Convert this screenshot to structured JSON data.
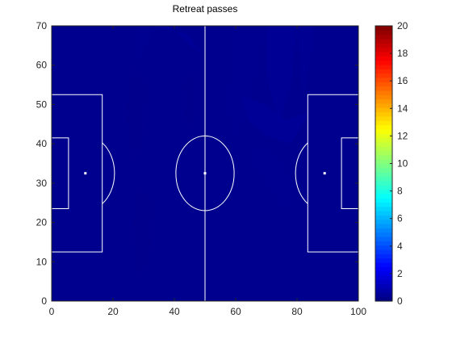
{
  "chart_data": {
    "type": "heatmap",
    "title": "Retreat passes",
    "xlabel": "",
    "ylabel": "",
    "xlim": [
      0,
      100
    ],
    "ylim": [
      0,
      70
    ],
    "x_ticks": [
      0,
      20,
      40,
      60,
      80,
      100
    ],
    "y_ticks": [
      0,
      10,
      20,
      30,
      40,
      50,
      60,
      70
    ],
    "colorbar": {
      "colormap": "jet",
      "clim": [
        0,
        20
      ],
      "ticks": [
        0,
        2,
        4,
        6,
        8,
        10,
        12,
        14,
        16,
        18,
        20
      ]
    },
    "background_value": 0,
    "colors": {
      "base": "#00008f",
      "pitch_lines": "#ffffff",
      "axis": "#262626"
    },
    "highlight_regions": [
      {
        "value": 0.6,
        "polygon": [
          [
            32,
            70
          ],
          [
            38,
            70
          ],
          [
            50,
            62
          ],
          [
            44,
            68
          ]
        ]
      },
      {
        "value": 0.4,
        "polygon": [
          [
            28,
            70
          ],
          [
            34,
            70
          ],
          [
            28,
            60
          ]
        ]
      },
      {
        "value": 0.35,
        "polygon": [
          [
            60,
            70
          ],
          [
            70,
            70
          ],
          [
            66,
            55
          ],
          [
            60,
            40
          ],
          [
            57,
            50
          ]
        ]
      },
      {
        "value": 0.5,
        "polygon": [
          [
            70,
            70
          ],
          [
            80,
            70
          ],
          [
            78,
            55
          ],
          [
            74,
            45
          ],
          [
            70,
            58
          ]
        ]
      },
      {
        "value": 0.45,
        "polygon": [
          [
            80,
            70
          ],
          [
            86,
            70
          ],
          [
            84,
            60
          ],
          [
            82,
            52
          ]
        ]
      },
      {
        "value": 0.55,
        "polygon": [
          [
            62,
            52
          ],
          [
            70,
            50
          ],
          [
            76,
            46
          ],
          [
            84,
            48
          ],
          [
            78,
            40
          ],
          [
            70,
            42
          ],
          [
            64,
            46
          ]
        ]
      },
      {
        "value": 0.35,
        "polygon": [
          [
            64,
            40
          ],
          [
            72,
            38
          ],
          [
            80,
            30
          ],
          [
            76,
            22
          ],
          [
            70,
            30
          ],
          [
            66,
            34
          ]
        ]
      },
      {
        "value": 0.3,
        "polygon": [
          [
            60,
            30
          ],
          [
            68,
            25
          ],
          [
            72,
            12
          ],
          [
            66,
            0
          ],
          [
            62,
            10
          ],
          [
            58,
            20
          ]
        ]
      },
      {
        "value": 0.3,
        "polygon": [
          [
            72,
            25
          ],
          [
            80,
            20
          ],
          [
            84,
            10
          ],
          [
            78,
            0
          ],
          [
            74,
            12
          ]
        ]
      },
      {
        "value": 0.2,
        "polygon": [
          [
            26,
            60
          ],
          [
            32,
            55
          ],
          [
            30,
            40
          ],
          [
            26,
            35
          ],
          [
            24,
            48
          ]
        ]
      },
      {
        "value": 0.2,
        "polygon": [
          [
            28,
            30
          ],
          [
            34,
            25
          ],
          [
            32,
            10
          ],
          [
            28,
            5
          ],
          [
            26,
            18
          ]
        ]
      },
      {
        "value": 0.2,
        "polygon": [
          [
            42,
            55
          ],
          [
            48,
            60
          ],
          [
            48,
            48
          ],
          [
            44,
            42
          ]
        ]
      }
    ],
    "pitch": {
      "halfway_x": 50,
      "center": [
        50,
        32.5
      ],
      "center_circle_rx": 9.5,
      "center_circle_ry": 9.5,
      "penalty_area_depth": 16.5,
      "penalty_area_y": [
        12.5,
        52.5
      ],
      "goal_area_depth": 5.5,
      "goal_area_y": [
        23.5,
        41.5
      ],
      "penalty_spot_distance": 11,
      "arc_radius": 9.5
    }
  }
}
